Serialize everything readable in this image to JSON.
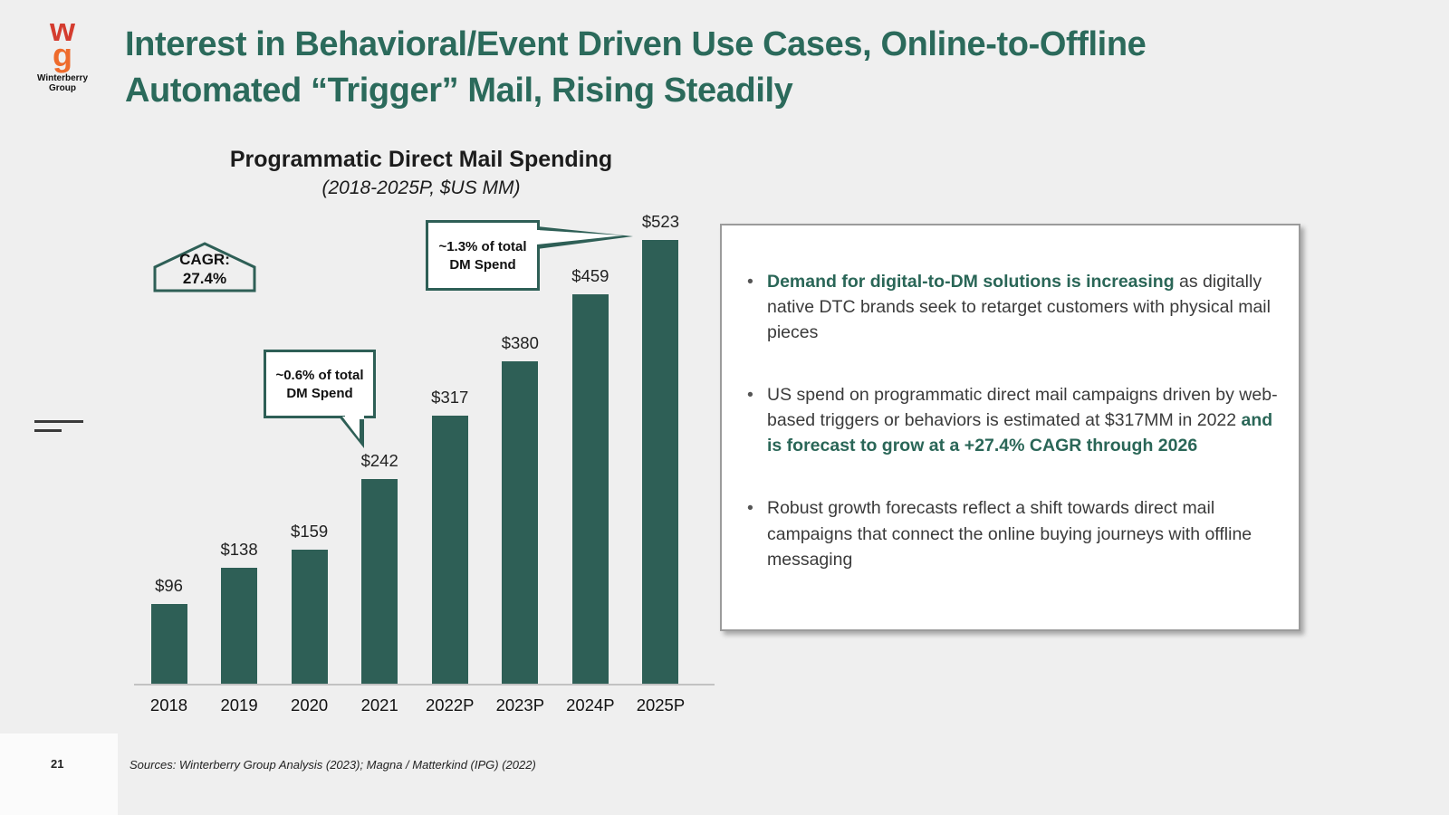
{
  "colors": {
    "accent": "#2a6657",
    "bar": "#2e5f56",
    "background": "#efefef",
    "title": "#2b6a5b"
  },
  "logo": {
    "w": "w",
    "g": "g",
    "caption_line1": "Winterberry",
    "caption_line2": "Group"
  },
  "header": {
    "title_line1": "Interest in Behavioral/Event Driven Use Cases, Online-to-Offline",
    "title_line2": "Automated “Trigger” Mail, Rising Steadily"
  },
  "chart_data": {
    "type": "bar",
    "title": "Programmatic Direct Mail Spending",
    "subtitle": "(2018-2025P, $US MM)",
    "categories": [
      "2018",
      "2019",
      "2020",
      "2021",
      "2022P",
      "2023P",
      "2024P",
      "2025P"
    ],
    "values": [
      96,
      138,
      159,
      242,
      317,
      380,
      459,
      523
    ],
    "labels": [
      "$96",
      "$138",
      "$159",
      "$242",
      "$317",
      "$380",
      "$459",
      "$523"
    ],
    "bar_color": "#2e5f56",
    "ylim": [
      0,
      560
    ],
    "grid": false,
    "legend": "none",
    "cagr": {
      "label": "CAGR:",
      "value": "27.4%"
    },
    "callouts": [
      {
        "line1": "~0.6% of total",
        "line2": "DM Spend",
        "target": "2021"
      },
      {
        "line1": "~1.3% of total",
        "line2": "DM Spend",
        "target": "2025P"
      }
    ]
  },
  "panel": {
    "bullets": [
      {
        "segments": [
          {
            "text": "Demand for digital-to-DM solutions is increasing",
            "bold": true
          },
          {
            "text": " as digitally native DTC brands seek to retarget customers with physical mail pieces",
            "bold": false
          }
        ]
      },
      {
        "segments": [
          {
            "text": "US spend on programmatic direct mail campaigns driven by web-based triggers or behaviors is estimated at $317MM in 2022 ",
            "bold": false
          },
          {
            "text": "and is forecast to grow at a +27.4% CAGR through 2026",
            "bold": true
          }
        ]
      },
      {
        "segments": [
          {
            "text": "Robust growth forecasts reflect a shift towards direct mail campaigns that connect the online buying journeys with offline messaging",
            "bold": false
          }
        ]
      }
    ]
  },
  "footer": {
    "page_number": "21",
    "sources": "Sources: Winterberry Group Analysis (2023); Magna / Matterkind (IPG) (2022)"
  }
}
